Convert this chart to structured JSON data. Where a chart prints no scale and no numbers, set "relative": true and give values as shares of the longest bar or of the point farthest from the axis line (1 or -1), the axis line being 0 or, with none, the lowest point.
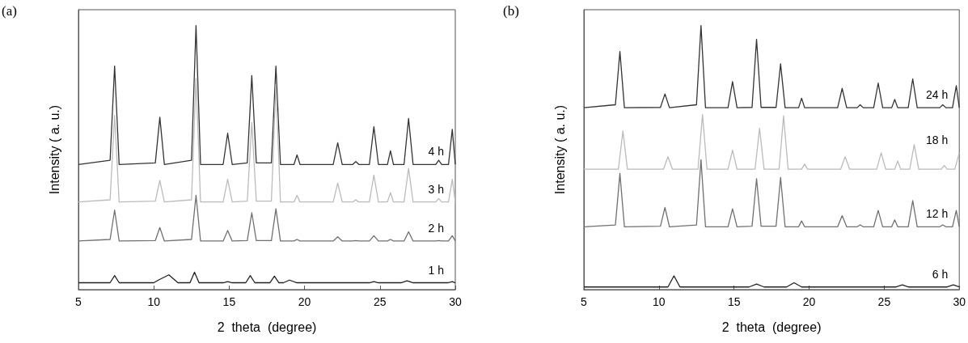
{
  "chart_data": [
    {
      "type": "line",
      "title": "(a)",
      "xlabel": "2  theta  (degree)",
      "ylabel": "Intensity ( a. u.)",
      "relative": true,
      "marker": "none",
      "xlim": [
        5,
        30
      ],
      "xticks": [
        5,
        10,
        15,
        20,
        25,
        30
      ],
      "series": [
        {
          "name": "4 h",
          "color": "#333333",
          "x": [
            5,
            7.1,
            7.4,
            7.7,
            10.1,
            10.4,
            10.7,
            12.5,
            12.8,
            13.1,
            14.6,
            14.9,
            15.2,
            16.2,
            16.5,
            16.8,
            17.8,
            18.1,
            18.4,
            19.3,
            19.5,
            19.7,
            21.9,
            22.2,
            22.5,
            23.2,
            23.4,
            23.6,
            24.3,
            24.6,
            24.9,
            25.5,
            25.7,
            25.9,
            26.6,
            26.9,
            27.2,
            28.7,
            28.9,
            29.1,
            29.55,
            29.8,
            30
          ],
          "values": [
            0.474,
            0.49,
            0.847,
            0.474,
            0.48,
            0.653,
            0.474,
            0.49,
            1,
            0.474,
            0.474,
            0.592,
            0.474,
            0.48,
            0.811,
            0.48,
            0.48,
            0.847,
            0.474,
            0.474,
            0.51,
            0.474,
            0.474,
            0.556,
            0.474,
            0.474,
            0.485,
            0.474,
            0.474,
            0.617,
            0.474,
            0.474,
            0.526,
            0.474,
            0.474,
            0.648,
            0.474,
            0.474,
            0.49,
            0.474,
            0.474,
            0.607,
            0.474
          ]
        },
        {
          "name": "3 h",
          "color": "#bbbbbb",
          "x": [
            5,
            7.1,
            7.4,
            7.7,
            10.1,
            10.4,
            10.7,
            12.5,
            12.8,
            13.1,
            14.6,
            14.9,
            15.2,
            16.2,
            16.5,
            16.8,
            17.8,
            18.1,
            18.4,
            19.3,
            19.5,
            19.7,
            21.9,
            22.2,
            22.5,
            23.2,
            23.4,
            23.6,
            24.3,
            24.6,
            24.9,
            25.5,
            25.7,
            25.9,
            26.6,
            26.9,
            27.2,
            28.7,
            28.9,
            29.1,
            29.55,
            29.8,
            30
          ],
          "values": [
            0.332,
            0.34,
            0.66,
            0.332,
            0.335,
            0.413,
            0.332,
            0.34,
            0.8,
            0.332,
            0.332,
            0.418,
            0.332,
            0.335,
            0.633,
            0.335,
            0.335,
            0.776,
            0.332,
            0.332,
            0.357,
            0.332,
            0.332,
            0.403,
            0.332,
            0.332,
            0.34,
            0.332,
            0.332,
            0.434,
            0.332,
            0.332,
            0.367,
            0.332,
            0.332,
            0.459,
            0.332,
            0.332,
            0.345,
            0.332,
            0.332,
            0.418,
            0.332
          ]
        },
        {
          "name": "2 h",
          "color": "#707070",
          "x": [
            5,
            7.1,
            7.4,
            7.7,
            10.1,
            10.4,
            10.7,
            12.5,
            12.8,
            13.1,
            14.6,
            14.9,
            15.2,
            16.2,
            16.5,
            16.8,
            17.8,
            18.1,
            18.4,
            19.3,
            19.5,
            19.7,
            21.9,
            22.2,
            22.5,
            23.2,
            23.4,
            23.6,
            24.3,
            24.6,
            24.9,
            25.5,
            25.7,
            25.9,
            26.6,
            26.9,
            27.2,
            28.7,
            28.9,
            29.1,
            29.55,
            29.8,
            30
          ],
          "values": [
            0.184,
            0.19,
            0.301,
            0.184,
            0.186,
            0.235,
            0.184,
            0.19,
            0.357,
            0.184,
            0.184,
            0.224,
            0.184,
            0.186,
            0.291,
            0.186,
            0.186,
            0.306,
            0.184,
            0.184,
            0.19,
            0.184,
            0.184,
            0.2,
            0.184,
            0.184,
            0.186,
            0.184,
            0.184,
            0.204,
            0.184,
            0.184,
            0.19,
            0.184,
            0.184,
            0.219,
            0.184,
            0.184,
            0.186,
            0.184,
            0.184,
            0.204,
            0.184
          ]
        },
        {
          "name": "1 h",
          "color": "#222222",
          "x": [
            5,
            7.1,
            7.4,
            7.7,
            10.0,
            10.3,
            11.0,
            11.6,
            12.4,
            12.7,
            13.0,
            14.6,
            14.9,
            15.2,
            16.1,
            16.4,
            16.7,
            17.7,
            18.0,
            18.3,
            18.6,
            19.0,
            19.5,
            24.3,
            24.6,
            24.9,
            26.4,
            26.8,
            27.2,
            29.5,
            29.8,
            30
          ],
          "values": [
            0.026,
            0.026,
            0.053,
            0.026,
            0.026,
            0.036,
            0.056,
            0.026,
            0.026,
            0.066,
            0.026,
            0.026,
            0.03,
            0.026,
            0.026,
            0.053,
            0.026,
            0.026,
            0.051,
            0.026,
            0.026,
            0.036,
            0.026,
            0.026,
            0.03,
            0.026,
            0.026,
            0.033,
            0.026,
            0.026,
            0.03,
            0.026
          ]
        }
      ]
    },
    {
      "type": "line",
      "title": "(b)",
      "xlabel": "2  theta  (degree)",
      "ylabel": "Intensity ( a. u.)",
      "relative": true,
      "marker": "none",
      "xlim": [
        5,
        30
      ],
      "xticks": [
        5,
        10,
        15,
        20,
        25,
        30
      ],
      "series": [
        {
          "name": "24 h",
          "color": "#333333",
          "x": [
            5,
            7.1,
            7.4,
            7.7,
            10.1,
            10.4,
            10.7,
            12.5,
            12.8,
            13.1,
            14.6,
            14.9,
            15.2,
            16.2,
            16.5,
            16.8,
            17.8,
            18.1,
            18.4,
            19.3,
            19.5,
            19.7,
            21.9,
            22.2,
            22.5,
            23.2,
            23.4,
            23.6,
            24.3,
            24.6,
            24.9,
            25.5,
            25.7,
            25.9,
            26.6,
            26.9,
            27.2,
            28.7,
            28.9,
            29.1,
            29.55,
            29.8,
            30
          ],
          "values": [
            0.689,
            0.7,
            0.902,
            0.689,
            0.69,
            0.741,
            0.689,
            0.7,
            1,
            0.689,
            0.689,
            0.788,
            0.689,
            0.69,
            0.948,
            0.69,
            0.69,
            0.855,
            0.689,
            0.689,
            0.725,
            0.689,
            0.689,
            0.762,
            0.689,
            0.689,
            0.7,
            0.689,
            0.689,
            0.782,
            0.689,
            0.689,
            0.72,
            0.689,
            0.689,
            0.798,
            0.689,
            0.689,
            0.7,
            0.689,
            0.689,
            0.772,
            0.689
          ]
        },
        {
          "name": "18 h",
          "color": "#bbbbbb",
          "x": [
            5,
            7.3,
            7.6,
            7.9,
            10.3,
            10.6,
            10.9,
            12.6,
            12.9,
            13.2,
            14.6,
            14.9,
            15.2,
            16.4,
            16.7,
            17.0,
            18.0,
            18.3,
            18.6,
            19.5,
            19.7,
            19.9,
            22.1,
            22.4,
            22.7,
            24.5,
            24.8,
            25.1,
            25.7,
            25.9,
            26.1,
            26.7,
            27.0,
            27.3,
            28.8,
            29.0,
            29.2,
            29.7,
            30
          ],
          "values": [
            0.456,
            0.456,
            0.601,
            0.456,
            0.456,
            0.503,
            0.456,
            0.456,
            0.663,
            0.456,
            0.456,
            0.528,
            0.456,
            0.456,
            0.611,
            0.456,
            0.456,
            0.658,
            0.456,
            0.456,
            0.475,
            0.456,
            0.456,
            0.503,
            0.456,
            0.456,
            0.518,
            0.456,
            0.456,
            0.487,
            0.456,
            0.456,
            0.549,
            0.456,
            0.456,
            0.47,
            0.456,
            0.456,
            0.518
          ]
        },
        {
          "name": "12 h",
          "color": "#707070",
          "x": [
            5,
            7.1,
            7.4,
            7.7,
            10.1,
            10.4,
            10.7,
            12.5,
            12.8,
            13.1,
            14.6,
            14.9,
            15.2,
            16.2,
            16.5,
            16.8,
            17.8,
            18.1,
            18.4,
            19.3,
            19.5,
            19.7,
            21.9,
            22.2,
            22.5,
            23.2,
            23.4,
            23.6,
            24.3,
            24.6,
            24.9,
            25.5,
            25.7,
            25.9,
            26.6,
            26.9,
            27.2,
            28.7,
            28.9,
            29.1,
            29.55,
            29.8,
            30
          ],
          "values": [
            0.238,
            0.245,
            0.44,
            0.238,
            0.24,
            0.311,
            0.238,
            0.245,
            0.492,
            0.238,
            0.238,
            0.306,
            0.238,
            0.24,
            0.42,
            0.24,
            0.24,
            0.425,
            0.238,
            0.238,
            0.26,
            0.238,
            0.238,
            0.28,
            0.238,
            0.238,
            0.245,
            0.238,
            0.238,
            0.3,
            0.238,
            0.238,
            0.264,
            0.238,
            0.238,
            0.337,
            0.238,
            0.238,
            0.245,
            0.238,
            0.238,
            0.3,
            0.238
          ]
        },
        {
          "name": "6 h",
          "color": "#222222",
          "x": [
            5,
            10.6,
            11.0,
            11.4,
            16.0,
            16.5,
            17.0,
            18.5,
            19.0,
            19.5,
            25.8,
            26.2,
            26.6,
            29.2,
            29.6,
            30
          ],
          "values": [
            0.01,
            0.01,
            0.052,
            0.01,
            0.01,
            0.021,
            0.01,
            0.01,
            0.026,
            0.01,
            0.01,
            0.018,
            0.01,
            0.01,
            0.018,
            0.01
          ]
        }
      ]
    }
  ]
}
